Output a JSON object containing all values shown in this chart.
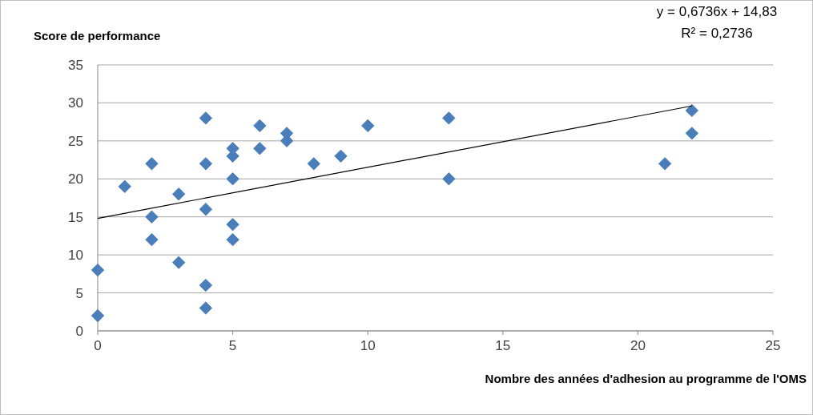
{
  "chart_data": {
    "type": "scatter",
    "ylabel": "Score de performance",
    "xlabel": "Nombre des années d'adhesion au programme de l'OMS",
    "annotations": [
      "y = 0,6736x + 14,83",
      "R² = 0,2736"
    ],
    "xlim": [
      0,
      25
    ],
    "xticks": [
      0,
      5,
      10,
      15,
      20,
      25
    ],
    "ylim": [
      0,
      35
    ],
    "yticks": [
      0,
      5,
      10,
      15,
      20,
      25,
      30,
      35
    ],
    "grid": "y",
    "marker": "diamond",
    "series": [
      {
        "color": "#4a7ebb",
        "x": [
          0,
          0,
          1,
          2,
          2,
          2,
          3,
          3,
          4,
          4,
          4,
          4,
          4,
          5,
          5,
          5,
          5,
          5,
          6,
          6,
          7,
          7,
          8,
          9,
          10,
          13,
          13,
          21,
          22,
          22
        ],
        "values": [
          8,
          2,
          19,
          22,
          15,
          12,
          18,
          9,
          28,
          22,
          16,
          6,
          3,
          24,
          23,
          20,
          14,
          12,
          27,
          24,
          26,
          25,
          22,
          23,
          27,
          28,
          20,
          22,
          29,
          26
        ]
      },
      {
        "type": "line",
        "color": "#000000",
        "line_style": "solid",
        "marker": "none",
        "x": [
          0,
          22
        ],
        "values": [
          14.8,
          29.6
        ]
      }
    ]
  }
}
